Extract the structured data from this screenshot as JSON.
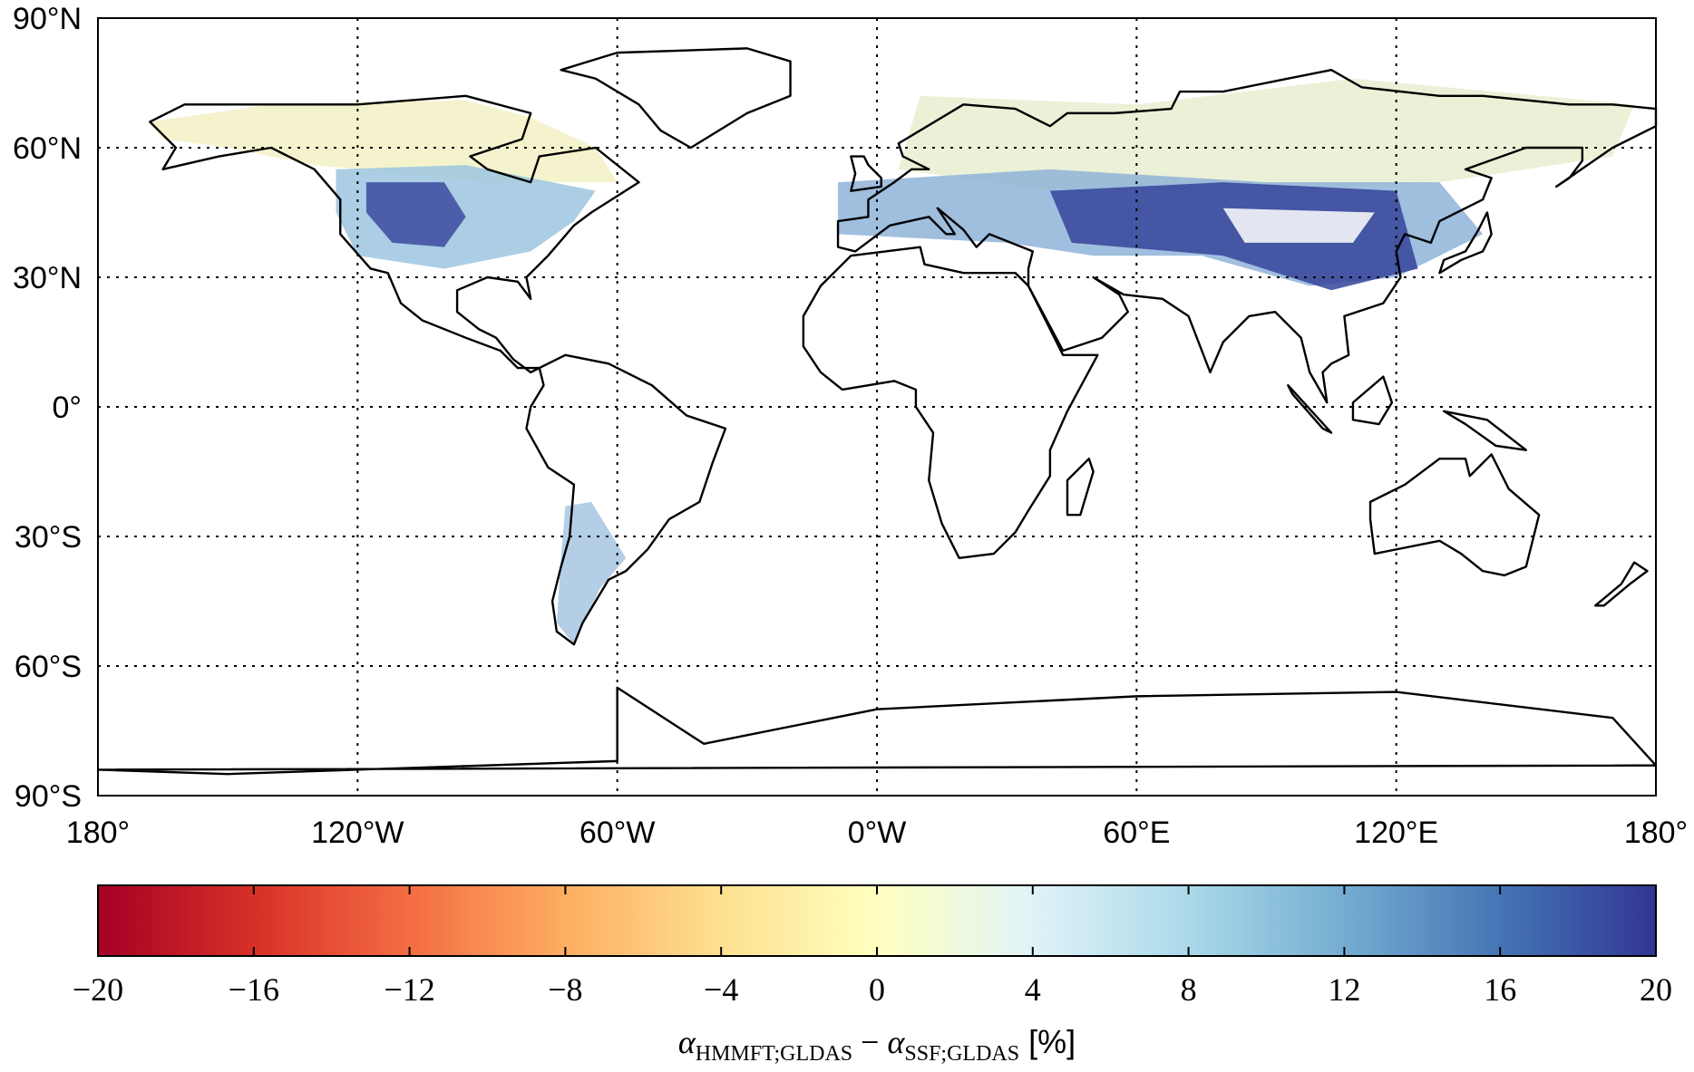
{
  "map": {
    "lon_range": [
      -180,
      180
    ],
    "lat_range": [
      -90,
      90
    ],
    "lon_ticks": [
      {
        "value": -180,
        "label": "180°"
      },
      {
        "value": -120,
        "label": "120°W"
      },
      {
        "value": -60,
        "label": "60°W"
      },
      {
        "value": 0,
        "label": "0°W"
      },
      {
        "value": 60,
        "label": "60°E"
      },
      {
        "value": 120,
        "label": "120°E"
      },
      {
        "value": 180,
        "label": "180°"
      }
    ],
    "lat_ticks": [
      {
        "value": 90,
        "label": "90°N"
      },
      {
        "value": 60,
        "label": "60°N"
      },
      {
        "value": 30,
        "label": "30°N"
      },
      {
        "value": 0,
        "label": "0°"
      },
      {
        "value": -30,
        "label": "30°S"
      },
      {
        "value": -60,
        "label": "60°S"
      },
      {
        "value": -90,
        "label": "90°S"
      }
    ]
  },
  "colorbar": {
    "lim": [
      -20,
      20
    ],
    "ticks": [
      {
        "value": -20,
        "label": "−20"
      },
      {
        "value": -16,
        "label": "−16"
      },
      {
        "value": -12,
        "label": "−12"
      },
      {
        "value": -8,
        "label": "−8"
      },
      {
        "value": -4,
        "label": "−4"
      },
      0,
      4,
      8,
      12,
      16,
      20
    ],
    "colors": [
      "#a50026",
      "#d73027",
      "#f46d43",
      "#fdae61",
      "#fee090",
      "#ffffbf",
      "#e0f3f8",
      "#abd9e9",
      "#74add1",
      "#4575b4",
      "#313695"
    ],
    "label": {
      "symbol1": "α",
      "sub1": "HMMFT;GLDAS",
      "minus": " − ",
      "symbol2": "α",
      "sub2": "SSF;GLDAS",
      "unit": " [%]"
    }
  }
}
